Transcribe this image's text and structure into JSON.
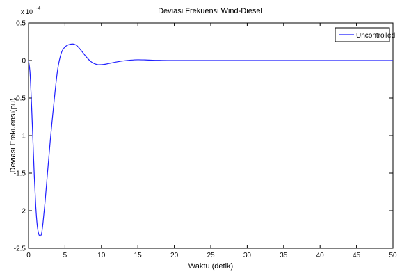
{
  "chart_data": {
    "type": "line",
    "title": "Deviasi Frekuensi Wind-Diesel",
    "xlabel": "Waktu (detik)",
    "ylabel": "Deviasi Frekuensi(pu)",
    "multiplier_base": "x 10",
    "multiplier_exponent": "-4",
    "xlim": [
      0,
      50
    ],
    "ylim": [
      -2.5,
      0.5
    ],
    "x_ticks": [
      0,
      5,
      10,
      15,
      20,
      25,
      30,
      35,
      40,
      45,
      50
    ],
    "x_tick_labels": [
      "0",
      "5",
      "10",
      "15",
      "20",
      "25",
      "30",
      "35",
      "40",
      "45",
      "50"
    ],
    "y_ticks": [
      0.5,
      0,
      -0.5,
      -1,
      -1.5,
      -2,
      -2.5
    ],
    "y_tick_labels": [
      "0.5",
      "0",
      "-0.5",
      "-1",
      "-1.5",
      "-2",
      "-2.5"
    ],
    "grid": false,
    "legend_position": "top-right",
    "series": [
      {
        "name": "Uncontrolled",
        "color": "#1f1fff",
        "x": [
          0,
          0.2,
          0.4,
          0.6,
          0.8,
          1.0,
          1.2,
          1.4,
          1.6,
          1.8,
          2.0,
          2.3,
          2.6,
          3.0,
          3.5,
          4.0,
          4.5,
          5.0,
          5.5,
          6.0,
          6.3,
          6.6,
          7.0,
          7.5,
          8.0,
          8.5,
          9.0,
          9.5,
          10.0,
          10.5,
          11.0,
          11.5,
          12.0,
          13.0,
          14.0,
          15.0,
          16.0,
          17.0,
          18.0,
          20.0,
          25.0,
          30.0,
          35.0,
          40.0,
          45.0,
          50.0
        ],
        "values": [
          0,
          -0.15,
          -0.55,
          -1.05,
          -1.55,
          -1.95,
          -2.2,
          -2.31,
          -2.34,
          -2.3,
          -2.15,
          -1.85,
          -1.5,
          -1.05,
          -0.55,
          -0.12,
          0.1,
          0.18,
          0.21,
          0.22,
          0.215,
          0.2,
          0.16,
          0.1,
          0.04,
          -0.01,
          -0.04,
          -0.055,
          -0.055,
          -0.05,
          -0.04,
          -0.03,
          -0.02,
          -0.005,
          0.005,
          0.01,
          0.008,
          0.004,
          0.002,
          0,
          0,
          0,
          0,
          0,
          0,
          0
        ]
      }
    ]
  }
}
